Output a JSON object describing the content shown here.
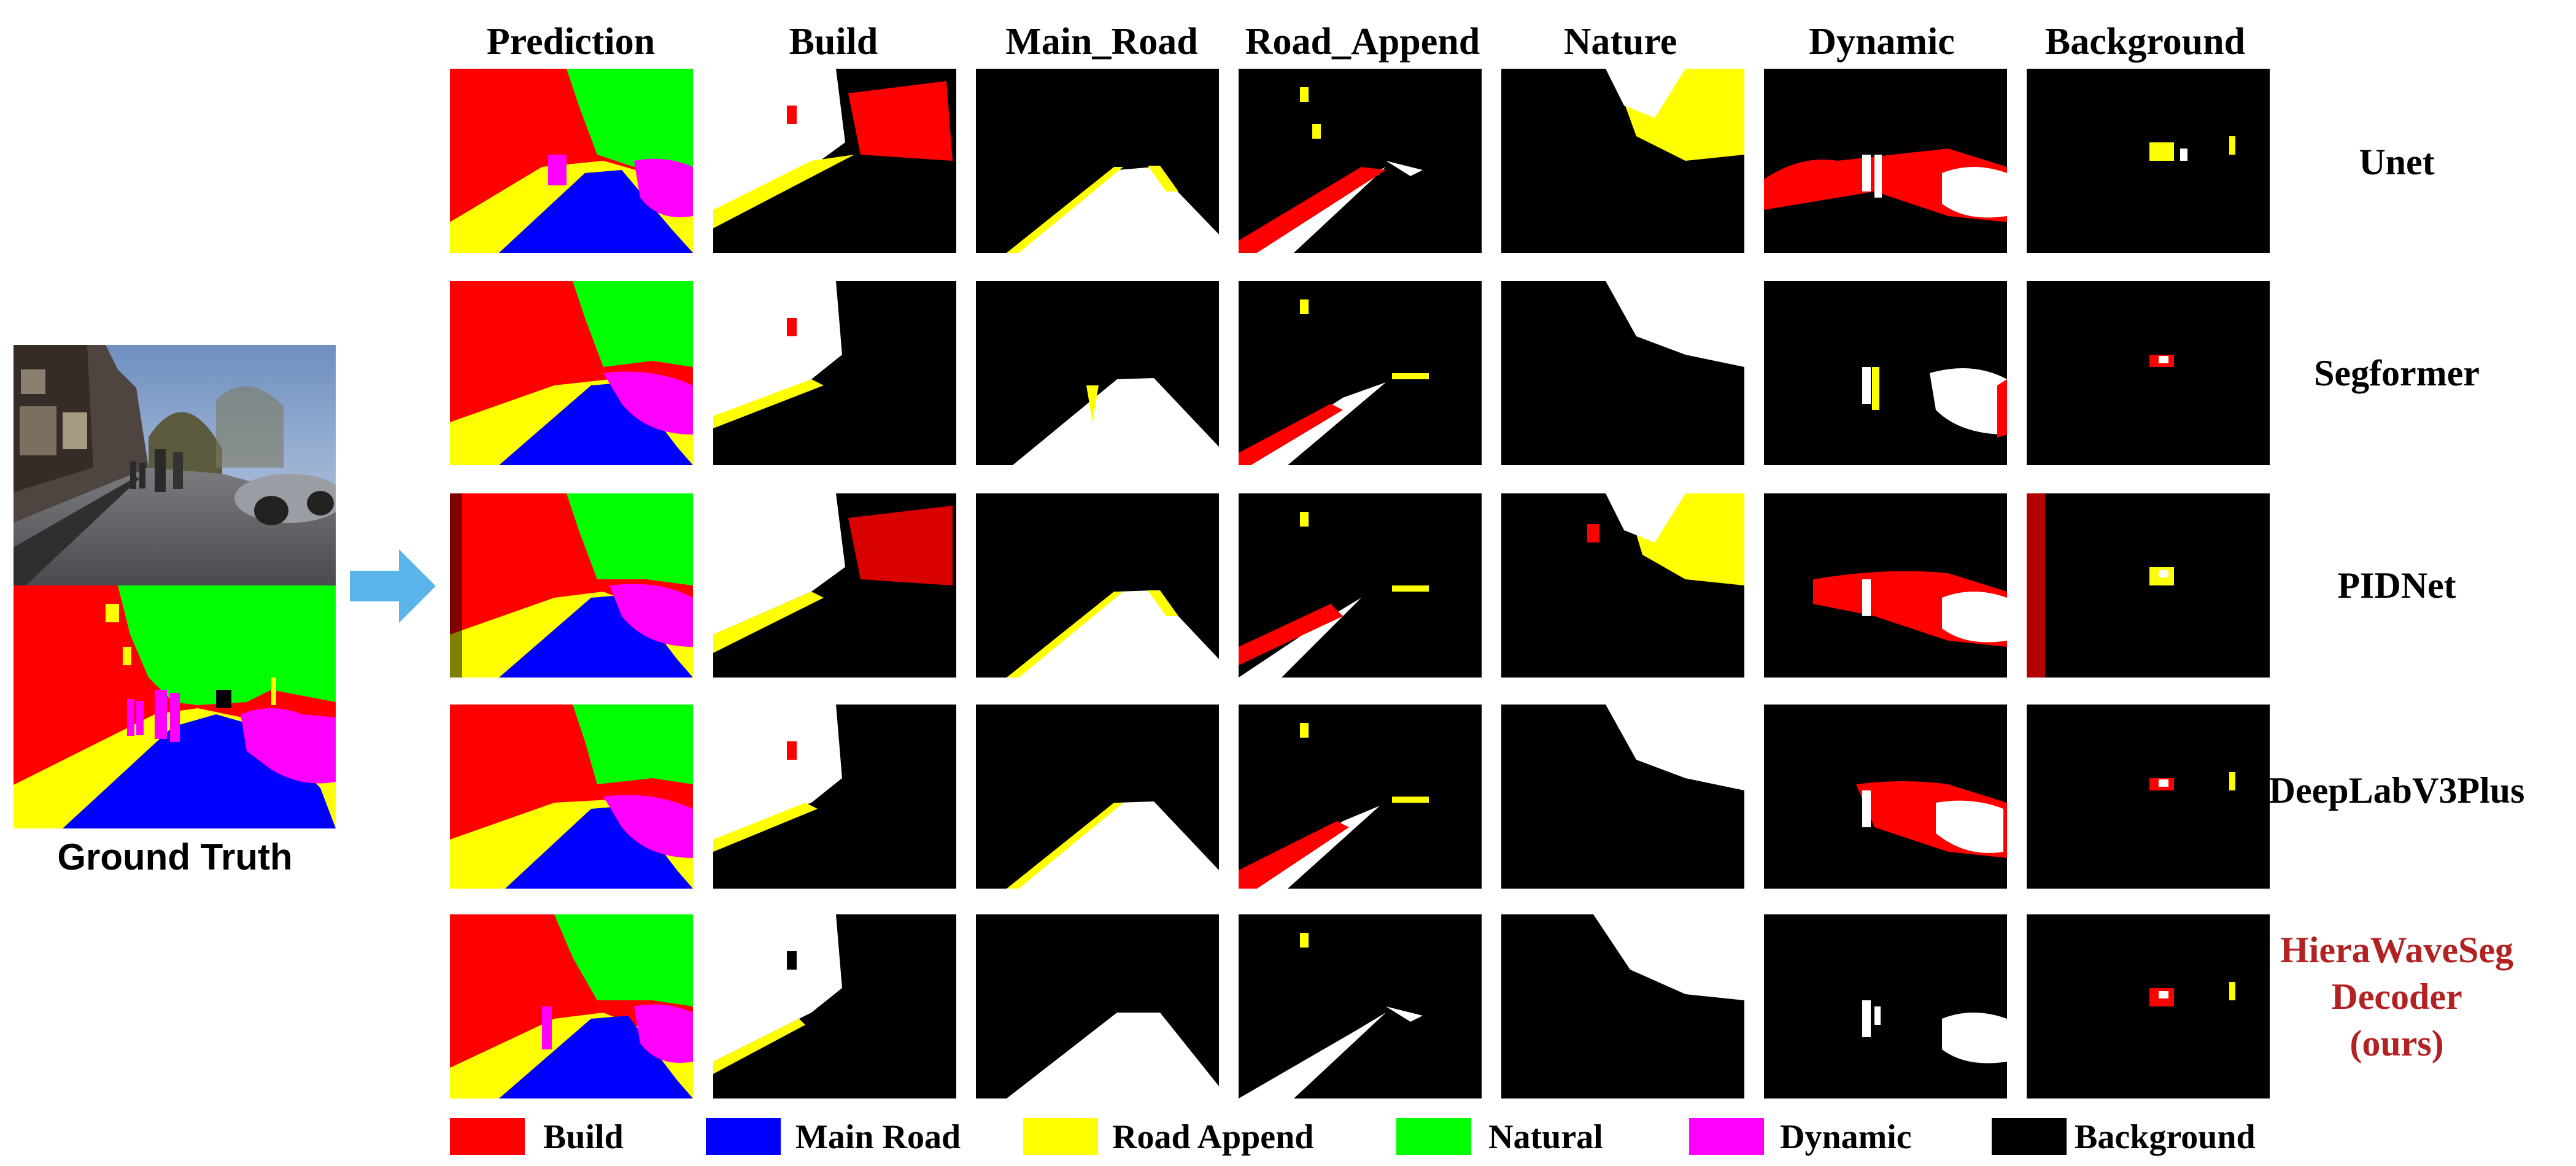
{
  "columns": [
    "Prediction",
    "Build",
    "Main_Road",
    "Road_Append",
    "Nature",
    "Dynamic",
    "Background"
  ],
  "rows": [
    {
      "label_lines": [
        "Unet"
      ],
      "ours": false
    },
    {
      "label_lines": [
        "Segformer"
      ],
      "ours": false
    },
    {
      "label_lines": [
        "PIDNet"
      ],
      "ours": false
    },
    {
      "label_lines": [
        "DeepLabV3Plus"
      ],
      "ours": false
    },
    {
      "label_lines": [
        "HieraWaveSeg",
        "Decoder",
        "(ours)"
      ],
      "ours": true
    }
  ],
  "ground_truth_label": "Ground Truth",
  "legend": [
    {
      "label": "Build",
      "color": "#ff0000"
    },
    {
      "label": "Main Road",
      "color": "#0000ff"
    },
    {
      "label": "Road Append",
      "color": "#ffff00"
    },
    {
      "label": "Natural",
      "color": "#00ff00"
    },
    {
      "label": "Dynamic",
      "color": "#ff00ff"
    },
    {
      "label": "Background",
      "color": "#000000"
    }
  ],
  "colors": {
    "arrow": "#5bb4ea",
    "ours_label": "#b22222"
  }
}
